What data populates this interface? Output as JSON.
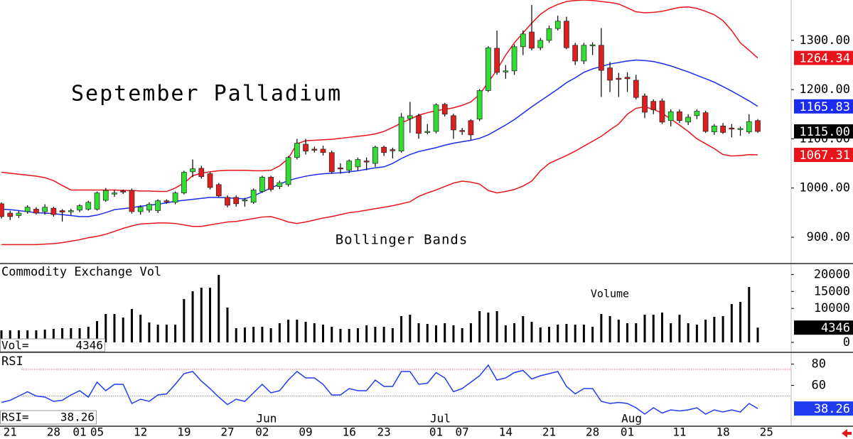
{
  "chart_data": [
    {
      "type": "candlestick",
      "title": "September Palladium",
      "annotation": "Bollinger Bands",
      "categories": [
        null,
        "21",
        null,
        null,
        null,
        null,
        "28",
        null,
        null,
        "01",
        null,
        "05",
        null,
        null,
        null,
        null,
        "12",
        null,
        null,
        null,
        null,
        "19",
        null,
        null,
        null,
        null,
        "27",
        null,
        null,
        null,
        "02",
        null,
        null,
        null,
        null,
        "09",
        null,
        null,
        null,
        null,
        "16",
        null,
        null,
        null,
        "23",
        null,
        null,
        null,
        null,
        null,
        "01",
        null,
        null,
        "07",
        null,
        null,
        null,
        null,
        "14",
        null,
        null,
        null,
        null,
        "21",
        null,
        null,
        null,
        null,
        "28",
        null,
        null,
        null,
        "01",
        null,
        null,
        null,
        null,
        null,
        "11",
        null,
        null,
        null,
        null,
        "18",
        null,
        null,
        null,
        null,
        "25"
      ],
      "months": [
        null,
        null,
        null,
        null,
        null,
        null,
        null,
        null,
        null,
        null,
        null,
        null,
        null,
        null,
        null,
        null,
        null,
        null,
        null,
        null,
        null,
        null,
        null,
        null,
        null,
        null,
        null,
        null,
        null,
        null,
        "Jun",
        null,
        null,
        null,
        null,
        null,
        null,
        null,
        null,
        null,
        null,
        null,
        null,
        null,
        null,
        null,
        null,
        null,
        null,
        null,
        "Jul",
        null,
        null,
        null,
        null,
        null,
        null,
        null,
        null,
        null,
        null,
        null,
        null,
        null,
        null,
        null,
        null,
        null,
        null,
        null,
        null,
        null,
        "Aug",
        null,
        null,
        null,
        null,
        null,
        null,
        null,
        null,
        null,
        null,
        null,
        null,
        null,
        null,
        null,
        null
      ],
      "open": [
        968,
        949,
        944,
        952,
        957,
        952,
        959,
        954,
        952,
        955,
        957,
        957,
        975,
        988,
        994,
        995,
        952,
        955,
        954,
        974,
        971,
        990,
        1033,
        1040,
        1029,
        1007,
        981,
        981,
        974,
        971,
        993,
        1022,
        1003,
        1007,
        1062,
        1089,
        1079,
        1079,
        1072,
        1041,
        1036,
        1043,
        1055,
        1050,
        1083,
        1078,
        1075,
        1141,
        1147,
        1113,
        1115,
        1170,
        1147,
        1117,
        1137,
        1140,
        1198,
        1284,
        1236,
        1238,
        1287,
        1317,
        1285,
        1300,
        1324,
        1339,
        1290,
        1258,
        1289,
        1290,
        1244,
        1223,
        1225,
        1219,
        1187,
        1176,
        1177,
        1137,
        1155,
        1134,
        1147,
        1153,
        1114,
        1126,
        1122,
        1119,
        1114,
        1137,
        null
      ],
      "high": [
        971,
        954,
        954,
        965,
        961,
        967,
        962,
        957,
        958,
        967,
        974,
        993,
        1000,
        996,
        997,
        999,
        965,
        971,
        977,
        977,
        993,
        1035,
        1058,
        1045,
        1033,
        1010,
        985,
        985,
        980,
        999,
        1025,
        1025,
        1015,
        1065,
        1100,
        1100,
        1084,
        1086,
        1076,
        1050,
        1058,
        1062,
        1062,
        1086,
        1086,
        1082,
        1152,
        1175,
        1151,
        1130,
        1172,
        1173,
        1151,
        1122,
        1140,
        1201,
        1288,
        1320,
        1250,
        1292,
        1320,
        1372,
        1305,
        1330,
        1350,
        1348,
        1295,
        1295,
        1296,
        1325,
        1256,
        1234,
        1235,
        1230,
        1192,
        1180,
        1182,
        1160,
        1160,
        1150,
        1160,
        1157,
        1130,
        1132,
        1130,
        1125,
        1150,
        1140,
        null
      ],
      "low": [
        938,
        935,
        939,
        948,
        946,
        946,
        942,
        932,
        945,
        951,
        954,
        954,
        972,
        982,
        988,
        948,
        946,
        950,
        949,
        968,
        967,
        987,
        1022,
        1019,
        997,
        980,
        961,
        962,
        962,
        968,
        990,
        993,
        998,
        1003,
        1058,
        1068,
        1072,
        1066,
        1029,
        1029,
        1030,
        1036,
        1036,
        1043,
        1065,
        1060,
        1072,
        1112,
        1100,
        1109,
        1111,
        1145,
        1100,
        1108,
        1096,
        1136,
        1195,
        1230,
        1222,
        1230,
        1270,
        1280,
        1280,
        1295,
        1320,
        1282,
        1250,
        1252,
        1270,
        1185,
        1195,
        1185,
        1195,
        1180,
        1142,
        1150,
        1130,
        1125,
        1132,
        1128,
        1140,
        1112,
        1108,
        1110,
        1103,
        1106,
        1110,
        1112,
        null
      ],
      "close": [
        942,
        942,
        949,
        961,
        949,
        961,
        946,
        951,
        954,
        964,
        971,
        990,
        995,
        990,
        992,
        952,
        961,
        967,
        974,
        972,
        990,
        1032,
        1039,
        1023,
        1001,
        984,
        965,
        968,
        976,
        996,
        1022,
        997,
        1011,
        1062,
        1091,
        1075,
        1077,
        1072,
        1033,
        1039,
        1055,
        1058,
        1053,
        1083,
        1072,
        1076,
        1144,
        1147,
        1111,
        1115,
        1169,
        1150,
        1118,
        1115,
        1108,
        1198,
        1285,
        1235,
        1238,
        1287,
        1313,
        1284,
        1300,
        1324,
        1339,
        1285,
        1258,
        1290,
        1291,
        1239,
        1219,
        1221,
        1222,
        1184,
        1154,
        1159,
        1134,
        1155,
        1137,
        1144,
        1156,
        1115,
        1126,
        1113,
        1120,
        1121,
        1135,
        1115,
        null
      ],
      "last_close_label": "1115.00",
      "up_color": "#33dd33",
      "down_color": "#dd1f1f",
      "upper_band": {
        "color": "#e8141b",
        "values": [
          1032,
          1030,
          1028,
          1026,
          1024,
          1021,
          1015,
          1005,
          996,
          996,
          996,
          996,
          996,
          996,
          995,
          995,
          994,
          994,
          993,
          993,
          1000,
          1010,
          1025,
          1030,
          1033,
          1035,
          1036,
          1036,
          1036,
          1035,
          1035,
          1036,
          1045,
          1060,
          1090,
          1096,
          1097,
          1098,
          1099,
          1101,
          1103,
          1105,
          1107,
          1110,
          1115,
          1123,
          1132,
          1140,
          1148,
          1153,
          1157,
          1160,
          1163,
          1168,
          1175,
          1190,
          1215,
          1240,
          1270,
          1295,
          1315,
          1335,
          1353,
          1365,
          1373,
          1379,
          1381,
          1382,
          1381,
          1379,
          1377,
          1374,
          1366,
          1358,
          1356,
          1357,
          1359,
          1363,
          1367,
          1368,
          1365,
          1359,
          1352,
          1340,
          1320,
          1295,
          1280,
          1264.34,
          null
        ]
      },
      "middle_band": {
        "color": "#1a2cf0",
        "values": [
          957,
          956,
          954,
          952,
          950,
          949,
          948,
          946,
          944,
          942,
          942,
          945,
          950,
          956,
          958,
          960,
          963,
          965,
          967,
          970,
          973,
          975,
          977,
          979,
          981,
          981,
          980,
          979,
          978,
          984,
          992,
          1000,
          1008,
          1015,
          1020,
          1024,
          1027,
          1029,
          1030,
          1031,
          1033,
          1035,
          1038,
          1041,
          1043,
          1050,
          1060,
          1068,
          1074,
          1078,
          1082,
          1087,
          1091,
          1094,
          1097,
          1101,
          1108,
          1118,
          1128,
          1139,
          1152,
          1165,
          1177,
          1189,
          1201,
          1214,
          1224,
          1235,
          1242,
          1247,
          1252,
          1255,
          1258,
          1260,
          1259,
          1257,
          1253,
          1248,
          1242,
          1236,
          1229,
          1222,
          1215,
          1206,
          1197,
          1187,
          1177,
          1165.83,
          null
        ]
      },
      "lower_band": {
        "color": "#e8141b",
        "values": [
          885,
          885,
          885,
          885,
          885,
          886,
          887,
          889,
          892,
          895,
          899,
          902,
          906,
          912,
          918,
          923,
          927,
          928,
          929,
          929,
          928,
          925,
          922,
          922,
          925,
          928,
          931,
          932,
          935,
          938,
          941,
          942,
          937,
          931,
          928,
          931,
          935,
          939,
          942,
          946,
          950,
          952,
          955,
          958,
          961,
          964,
          968,
          972,
          983,
          990,
          996,
          1003,
          1010,
          1014,
          1012,
          1008,
          995,
          990,
          993,
          997,
          1004,
          1014,
          1035,
          1050,
          1058,
          1066,
          1075,
          1085,
          1095,
          1105,
          1118,
          1130,
          1150,
          1162,
          1165,
          1160,
          1152,
          1140,
          1128,
          1115,
          1100,
          1090,
          1080,
          1068,
          1065,
          1066,
          1068,
          1067.31,
          null
        ]
      },
      "ylim": [
        848,
        1382
      ],
      "yticks": [
        {
          "value": 900,
          "label": "900.00"
        },
        {
          "value": 1000,
          "label": "1000.00"
        },
        {
          "value": 1100,
          "label": "1100.00"
        },
        {
          "value": 1200,
          "label": "1200.00"
        },
        {
          "value": 1300,
          "label": "1300.00"
        }
      ]
    },
    {
      "type": "bar",
      "title": "Commodity Exchange Vol",
      "annotation": "Volume",
      "readout_label": "Vol=",
      "color": "#000000",
      "values": [
        3550,
        3550,
        3550,
        3550,
        3550,
        3760,
        3970,
        4180,
        4180,
        4180,
        4600,
        6270,
        8360,
        8360,
        7320,
        9830,
        8160,
        5860,
        5230,
        5230,
        5230,
        12760,
        15060,
        16100,
        16100,
        19860,
        10250,
        4180,
        4390,
        4600,
        4600,
        4180,
        5650,
        6690,
        6690,
        6060,
        5650,
        5230,
        4600,
        3970,
        3970,
        4180,
        5020,
        4600,
        4600,
        4180,
        7740,
        8160,
        5650,
        5440,
        5020,
        5650,
        5020,
        4180,
        5650,
        9200,
        8780,
        9200,
        5020,
        5650,
        7740,
        6060,
        4390,
        4600,
        5230,
        5440,
        5230,
        5230,
        4600,
        8360,
        7740,
        6690,
        5650,
        5650,
        8160,
        8160,
        8780,
        5650,
        8160,
        5650,
        5230,
        6690,
        7530,
        7740,
        11290,
        11920,
        16310,
        4346,
        null
      ],
      "ylim": [
        0,
        23000
      ],
      "yticks": [
        0,
        10000,
        15000,
        20000
      ]
    },
    {
      "type": "line",
      "title": "RSI",
      "readout_label": "RSI=",
      "color": "#1f3cf0",
      "values": [
        44,
        46,
        50,
        54,
        50,
        49,
        45,
        46,
        51,
        55,
        49,
        63,
        55,
        61,
        61,
        43,
        47,
        45,
        51,
        52,
        61,
        71,
        73,
        64,
        57,
        49,
        42,
        47,
        45,
        53,
        61,
        53,
        55,
        65,
        73,
        67,
        67,
        61,
        51,
        51,
        57,
        55,
        55,
        65,
        59,
        59,
        73,
        73,
        61,
        62,
        72,
        67,
        54,
        57,
        63,
        69,
        79,
        65,
        67,
        72,
        74,
        66,
        69,
        71,
        73,
        59,
        52,
        57,
        57,
        45,
        43,
        44,
        43,
        39,
        33,
        39,
        34,
        37,
        36,
        37,
        39,
        33,
        37,
        35,
        37,
        35,
        43,
        38.26,
        null
      ],
      "levels": [
        {
          "value": 75,
          "color": "#e06060"
        },
        {
          "value": 50,
          "color": "#999999"
        }
      ],
      "ylim": [
        21,
        89
      ],
      "yticks": [
        60,
        80
      ]
    }
  ]
}
